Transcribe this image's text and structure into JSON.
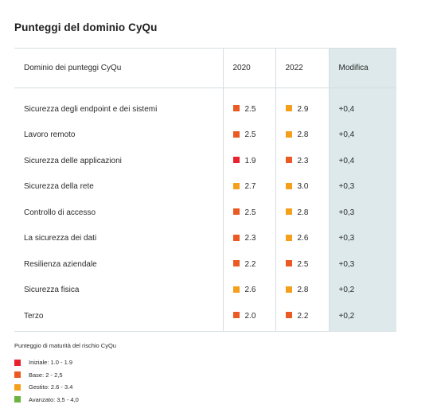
{
  "title": "Punteggi del dominio CyQu",
  "colors": {
    "Iniziale": "#e8232f",
    "Base": "#eb5a24",
    "Gestito": "#f5a01d",
    "Avanzato": "#6cb33f",
    "modifica_bg": "#dde9ea",
    "border": "#d3dee2"
  },
  "table": {
    "headers": {
      "domain": "Dominio dei punteggi CyQu",
      "y2020": "2020",
      "y2022": "2022",
      "change": "Modifica"
    },
    "rows": [
      {
        "domain": "Sicurezza degli endpoint e dei sistemi",
        "v2020": "2.5",
        "c2020": "Base",
        "v2022": "2.9",
        "c2022": "Gestito",
        "change": "+0,4"
      },
      {
        "domain": "Lavoro remoto",
        "v2020": "2.5",
        "c2020": "Base",
        "v2022": "2.8",
        "c2022": "Gestito",
        "change": "+0,4"
      },
      {
        "domain": "Sicurezza delle applicazioni",
        "v2020": "1.9",
        "c2020": "Iniziale",
        "v2022": "2.3",
        "c2022": "Base",
        "change": "+0,4"
      },
      {
        "domain": "Sicurezza della rete",
        "v2020": "2.7",
        "c2020": "Gestito",
        "v2022": "3.0",
        "c2022": "Gestito",
        "change": "+0,3"
      },
      {
        "domain": "Controllo di accesso",
        "v2020": "2.5",
        "c2020": "Base",
        "v2022": "2.8",
        "c2022": "Gestito",
        "change": "+0,3"
      },
      {
        "domain": "La sicurezza dei dati",
        "v2020": "2.3",
        "c2020": "Base",
        "v2022": "2.6",
        "c2022": "Gestito",
        "change": "+0,3"
      },
      {
        "domain": "Resilienza aziendale",
        "v2020": "2.2",
        "c2020": "Base",
        "v2022": "2.5",
        "c2022": "Base",
        "change": "+0,3"
      },
      {
        "domain": "Sicurezza fisica",
        "v2020": "2.6",
        "c2020": "Gestito",
        "v2022": "2.8",
        "c2022": "Gestito",
        "change": "+0,2"
      },
      {
        "domain": "Terzo",
        "v2020": "2.0",
        "c2020": "Base",
        "v2022": "2.2",
        "c2022": "Base",
        "change": "+0,2"
      }
    ]
  },
  "legend": {
    "title": "Punteggio di maturità del rischio CyQu",
    "items": [
      {
        "level": "Iniziale",
        "label": "Iniziale: 1.0 - 1.9"
      },
      {
        "level": "Base",
        "label": "Base: 2 - 2,5"
      },
      {
        "level": "Gestito",
        "label": "Gestito: 2.6 - 3.4"
      },
      {
        "level": "Avanzato",
        "label": "Avanzato: 3,5 - 4,0"
      }
    ]
  }
}
